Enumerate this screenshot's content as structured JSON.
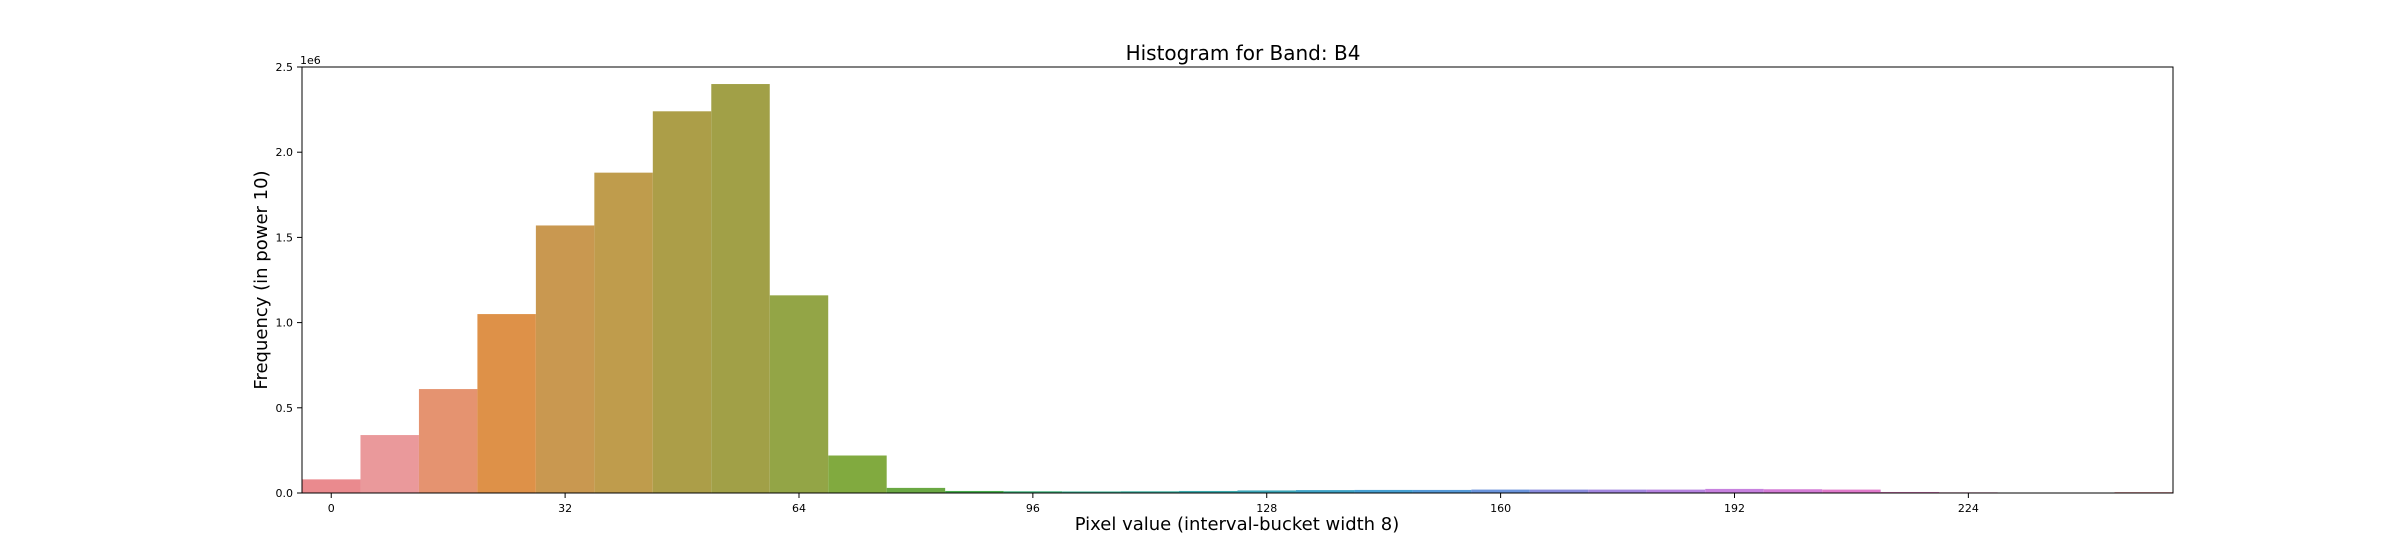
{
  "chart_data": {
    "type": "bar",
    "title": "Histogram for Band: B4",
    "xlabel": "Pixel value (interval-bucket width 8)",
    "ylabel": "Frequency (in power 10)",
    "y_offset_label": "1e6",
    "bucket_width": 8,
    "xlim": [
      -4,
      252
    ],
    "ylim": [
      0,
      2500000
    ],
    "x_ticks": [
      0,
      32,
      64,
      96,
      128,
      160,
      192,
      224
    ],
    "y_ticks": [
      0,
      500000,
      1000000,
      1500000,
      2000000,
      2500000
    ],
    "y_tick_labels": [
      "0.0",
      "0.5",
      "1.0",
      "1.5",
      "2.0",
      "2.5"
    ],
    "categories": [
      0,
      8,
      16,
      24,
      32,
      40,
      48,
      56,
      64,
      72,
      80,
      88,
      96,
      104,
      112,
      120,
      128,
      136,
      144,
      152,
      160,
      168,
      176,
      184,
      192,
      200,
      208,
      216,
      224,
      232,
      240,
      248
    ],
    "values": [
      80000,
      340000,
      610000,
      1050000,
      1570000,
      1880000,
      2240000,
      2400000,
      1160000,
      220000,
      30000,
      12000,
      10000,
      9000,
      10000,
      12000,
      15000,
      17000,
      18000,
      18000,
      20000,
      20000,
      20000,
      20000,
      24000,
      22000,
      20000,
      6000,
      4000,
      2000,
      1000,
      5000
    ],
    "colors": [
      "#ea8a8e",
      "#ea999b",
      "#e59370",
      "#de9148",
      "#c99850",
      "#bf9c4c",
      "#ac9e48",
      "#a1a047",
      "#93a546",
      "#81aa3f",
      "#6aa843",
      "#46ad4b",
      "#3ab077",
      "#36ad8e",
      "#38ad9c",
      "#39aaac",
      "#3ba7b9",
      "#3ea3c6",
      "#46a0d2",
      "#559ad8",
      "#6a94dc",
      "#8a8bdd",
      "#a387e0",
      "#b683e0",
      "#c781df",
      "#d47cd6",
      "#e07acb",
      "#e57ebf",
      "#e983b1",
      "#eb87a2",
      "#ec8a99",
      "#ea8c91"
    ],
    "grid": false,
    "legend": "none"
  }
}
